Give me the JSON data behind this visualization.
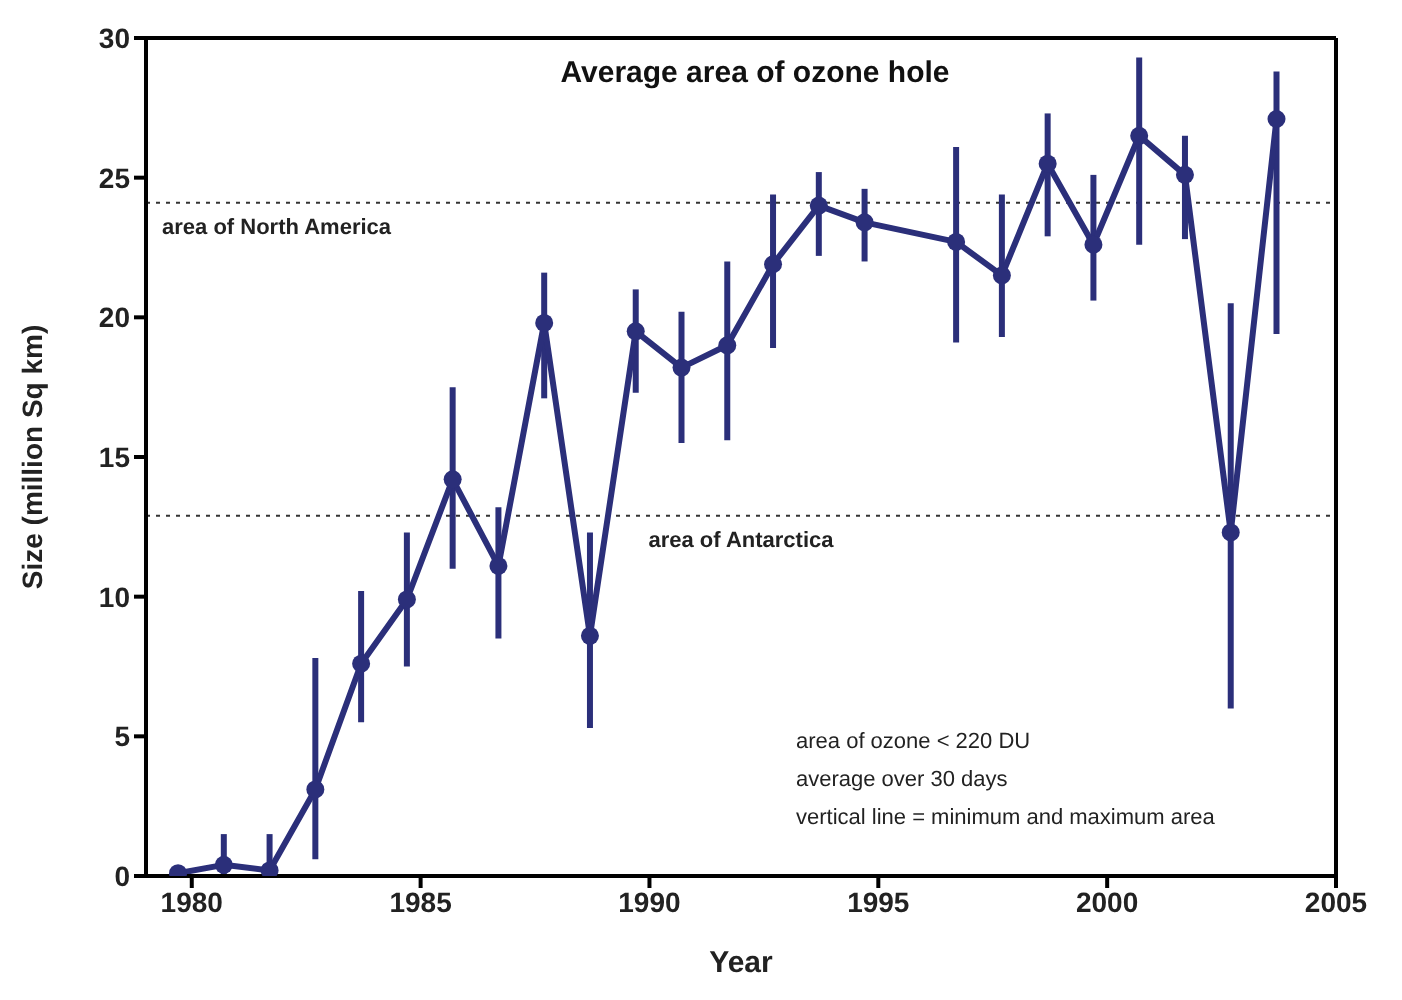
{
  "chart_data": {
    "type": "line",
    "title": "Average area of ozone hole",
    "xlabel": "Year",
    "ylabel": "Size (million Sq km)",
    "x": [
      1979.7,
      1980.7,
      1981.7,
      1982.7,
      1983.7,
      1984.7,
      1985.7,
      1986.7,
      1987.7,
      1988.7,
      1989.7,
      1990.7,
      1991.7,
      1992.7,
      1993.7,
      1994.7,
      1996.7,
      1997.7,
      1998.7,
      1999.7,
      2000.7,
      2001.7,
      2002.7,
      2003.7
    ],
    "series": [
      {
        "color": "#2b2f7a",
        "values": [
          0.1,
          0.4,
          0.2,
          3.1,
          7.6,
          9.9,
          14.2,
          11.1,
          19.8,
          8.6,
          19.5,
          18.2,
          19.0,
          21.9,
          24.0,
          23.4,
          22.7,
          21.5,
          25.5,
          22.6,
          26.5,
          25.1,
          12.3,
          27.1
        ],
        "errors": [
          [
            0,
            0.3
          ],
          [
            0,
            1.5
          ],
          [
            0,
            1.5
          ],
          [
            0.6,
            7.8
          ],
          [
            5.5,
            10.2
          ],
          [
            7.5,
            12.3
          ],
          [
            11,
            17.5
          ],
          [
            8.5,
            13.2
          ],
          [
            17.1,
            21.6
          ],
          [
            5.3,
            12.3
          ],
          [
            17.3,
            21
          ],
          [
            15.5,
            20.2
          ],
          [
            15.6,
            22
          ],
          [
            18.9,
            24.4
          ],
          [
            22.2,
            25.2
          ],
          [
            22,
            24.6
          ],
          [
            19.1,
            26.1
          ],
          [
            19.3,
            24.4
          ],
          [
            22.9,
            27.3
          ],
          [
            20.6,
            25.1
          ],
          [
            22.6,
            29.3
          ],
          [
            22.8,
            26.5
          ],
          [
            6,
            20.5
          ],
          [
            19.4,
            28.8
          ]
        ]
      }
    ],
    "xlim": [
      1979,
      2005
    ],
    "xticks": [
      1980,
      1985,
      1990,
      1995,
      2000,
      2005
    ],
    "ylim": [
      0,
      30
    ],
    "yticks": [
      0,
      5,
      10,
      15,
      20,
      25,
      30
    ],
    "ref_lines": [
      {
        "axis": "y",
        "value": 24.1,
        "label": "area of North America",
        "line_style": "dotted",
        "color": "#333333"
      },
      {
        "axis": "y",
        "value": 12.9,
        "label": "area of Antarctica",
        "line_style": "dotted",
        "color": "#333333"
      }
    ],
    "annotations": [
      "area of ozone < 220 DU",
      "average over 30 days",
      "vertical line = minimum and maximum area"
    ],
    "marker": "circle",
    "line_style": "solid",
    "grid": false,
    "legend": false
  }
}
